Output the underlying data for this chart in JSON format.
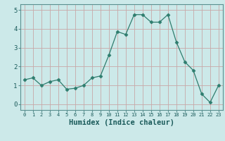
{
  "x": [
    0,
    1,
    2,
    3,
    4,
    5,
    6,
    7,
    8,
    9,
    10,
    11,
    12,
    13,
    14,
    15,
    16,
    17,
    18,
    19,
    20,
    21,
    22,
    23
  ],
  "y": [
    1.3,
    1.4,
    1.0,
    1.2,
    1.3,
    0.8,
    0.85,
    1.0,
    1.4,
    1.5,
    2.6,
    3.85,
    3.7,
    4.75,
    4.75,
    4.35,
    4.35,
    4.75,
    3.3,
    2.25,
    1.8,
    0.55,
    0.1,
    1.0
  ],
  "line_color": "#2e7d6e",
  "marker": "D",
  "marker_size": 2.5,
  "bg_color": "#cce9e9",
  "grid_color": "#aacfcf",
  "xlabel": "Humidex (Indice chaleur)",
  "xlim": [
    -0.5,
    23.5
  ],
  "ylim": [
    -0.3,
    5.3
  ],
  "yticks": [
    0,
    1,
    2,
    3,
    4,
    5
  ],
  "xticks": [
    0,
    1,
    2,
    3,
    4,
    5,
    6,
    7,
    8,
    9,
    10,
    11,
    12,
    13,
    14,
    15,
    16,
    17,
    18,
    19,
    20,
    21,
    22,
    23
  ]
}
